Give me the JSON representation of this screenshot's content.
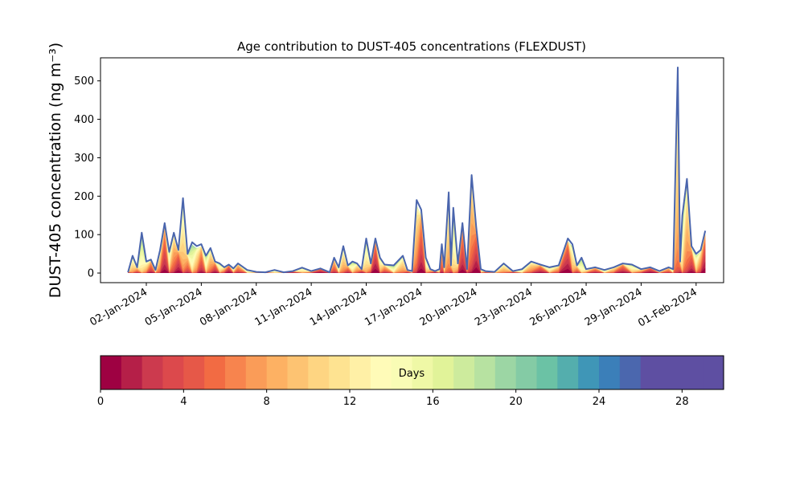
{
  "chart_data": {
    "type": "area",
    "title": "Age contribution to DUST-405 concentrations (FLEXDUST)",
    "ylabel": "DUST-405 concentration (ng m⁻³)",
    "xlabel": "",
    "ylim": [
      -25,
      560
    ],
    "xlim": [
      "2023-12-30T12:00",
      "2024-02-02T12:00"
    ],
    "grid": false,
    "y_ticks": [
      0,
      100,
      200,
      300,
      400,
      500
    ],
    "x_ticks": [
      "2024-01-02",
      "2024-01-05",
      "2024-01-08",
      "2024-01-11",
      "2024-01-14",
      "2024-01-17",
      "2024-01-20",
      "2024-01-23",
      "2024-01-26",
      "2024-01-29",
      "2024-02-01"
    ],
    "x_tick_labels": [
      "02-Jan-2024",
      "05-Jan-2024",
      "08-Jan-2024",
      "11-Jan-2024",
      "14-Jan-2024",
      "17-Jan-2024",
      "20-Jan-2024",
      "23-Jan-2024",
      "26-Jan-2024",
      "29-Jan-2024",
      "01-Feb-2024"
    ],
    "total_series": {
      "x": [
        "2024-01-01T00:00",
        "2024-01-01T06:00",
        "2024-01-01T12:00",
        "2024-01-01T18:00",
        "2024-01-02T00:00",
        "2024-01-02T06:00",
        "2024-01-02T12:00",
        "2024-01-02T18:00",
        "2024-01-03T00:00",
        "2024-01-03T06:00",
        "2024-01-03T12:00",
        "2024-01-03T18:00",
        "2024-01-04T00:00",
        "2024-01-04T06:00",
        "2024-01-04T12:00",
        "2024-01-04T18:00",
        "2024-01-05T00:00",
        "2024-01-05T06:00",
        "2024-01-05T12:00",
        "2024-01-05T18:00",
        "2024-01-06T00:00",
        "2024-01-06T06:00",
        "2024-01-06T12:00",
        "2024-01-06T18:00",
        "2024-01-07T00:00",
        "2024-01-07T12:00",
        "2024-01-08T00:00",
        "2024-01-08T12:00",
        "2024-01-09T00:00",
        "2024-01-09T12:00",
        "2024-01-10T00:00",
        "2024-01-10T12:00",
        "2024-01-11T00:00",
        "2024-01-11T12:00",
        "2024-01-12T00:00",
        "2024-01-12T06:00",
        "2024-01-12T12:00",
        "2024-01-12T18:00",
        "2024-01-13T00:00",
        "2024-01-13T06:00",
        "2024-01-13T12:00",
        "2024-01-13T18:00",
        "2024-01-14T00:00",
        "2024-01-14T06:00",
        "2024-01-14T12:00",
        "2024-01-14T18:00",
        "2024-01-15T00:00",
        "2024-01-15T12:00",
        "2024-01-16T00:00",
        "2024-01-16T06:00",
        "2024-01-16T12:00",
        "2024-01-16T18:00",
        "2024-01-17T00:00",
        "2024-01-17T06:00",
        "2024-01-17T12:00",
        "2024-01-17T18:00",
        "2024-01-18T00:00",
        "2024-01-18T03:00",
        "2024-01-18T06:00",
        "2024-01-18T12:00",
        "2024-01-18T15:00",
        "2024-01-18T18:00",
        "2024-01-19T00:00",
        "2024-01-19T06:00",
        "2024-01-19T12:00",
        "2024-01-19T18:00",
        "2024-01-20T00:00",
        "2024-01-20T06:00",
        "2024-01-20T12:00",
        "2024-01-21T00:00",
        "2024-01-21T12:00",
        "2024-01-22T00:00",
        "2024-01-22T12:00",
        "2024-01-23T00:00",
        "2024-01-23T12:00",
        "2024-01-24T00:00",
        "2024-01-24T12:00",
        "2024-01-25T00:00",
        "2024-01-25T06:00",
        "2024-01-25T12:00",
        "2024-01-25T18:00",
        "2024-01-26T00:00",
        "2024-01-26T12:00",
        "2024-01-27T00:00",
        "2024-01-27T12:00",
        "2024-01-28T00:00",
        "2024-01-28T12:00",
        "2024-01-29T00:00",
        "2024-01-29T12:00",
        "2024-01-30T00:00",
        "2024-01-30T12:00",
        "2024-01-30T18:00",
        "2024-01-31T00:00",
        "2024-01-31T03:00",
        "2024-01-31T06:00",
        "2024-01-31T12:00",
        "2024-01-31T18:00",
        "2024-02-01T00:00",
        "2024-02-01T06:00",
        "2024-02-01T12:00"
      ],
      "values": [
        2,
        45,
        15,
        105,
        30,
        35,
        8,
        60,
        130,
        55,
        105,
        60,
        195,
        50,
        80,
        70,
        75,
        45,
        65,
        30,
        25,
        15,
        22,
        12,
        25,
        8,
        3,
        2,
        8,
        2,
        5,
        14,
        5,
        12,
        2,
        40,
        15,
        70,
        20,
        30,
        25,
        10,
        90,
        25,
        90,
        40,
        22,
        20,
        45,
        8,
        5,
        190,
        165,
        40,
        10,
        5,
        10,
        75,
        15,
        210,
        20,
        170,
        25,
        130,
        10,
        255,
        120,
        10,
        5,
        3,
        25,
        5,
        10,
        30,
        22,
        15,
        20,
        90,
        75,
        20,
        40,
        10,
        15,
        8,
        15,
        25,
        22,
        10,
        15,
        5,
        15,
        10,
        535,
        30,
        150,
        245,
        70,
        50,
        60,
        110
      ]
    },
    "age_bands": {
      "unit": "Days",
      "edges": [
        0,
        1,
        2,
        3,
        4,
        5,
        6,
        7,
        8,
        9,
        10,
        11,
        12,
        13,
        14,
        15,
        16,
        17,
        18,
        19,
        20,
        21,
        22,
        23,
        24,
        25,
        26,
        27,
        28,
        29,
        30
      ],
      "colors": [
        "#9e0142",
        "#b51f48",
        "#cc3a4e",
        "#dc494c",
        "#e65848",
        "#f26b43",
        "#f7844e",
        "#fa9c58",
        "#fdb163",
        "#fdc372",
        "#fed582",
        "#fee391",
        "#fff0a6",
        "#fffbb8",
        "#f9fcb5",
        "#eff8a6",
        "#e1f399",
        "#cdeb9d",
        "#b7e2a1",
        "#9cd6a4",
        "#84cba5",
        "#6bc2a5",
        "#54aead",
        "#3f96b7",
        "#3b7fb9",
        "#4b67ae",
        "#5e4fa2",
        "#5e4fa2",
        "#5e4fa2",
        "#5e4fa2"
      ]
    },
    "colorbar": {
      "label": "Days",
      "ticks": [
        "0",
        "4",
        "8",
        "12",
        "16",
        "20",
        "24",
        "28"
      ],
      "range": [
        0,
        30
      ]
    }
  }
}
